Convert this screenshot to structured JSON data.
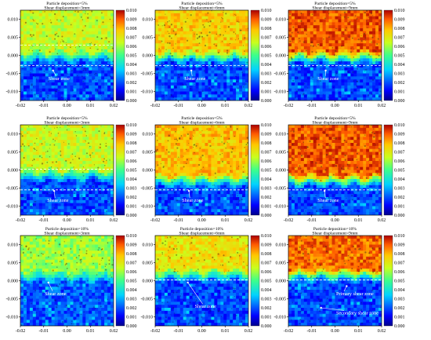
{
  "chart_data": [
    {
      "type": "heatmap",
      "title": "Particle deposition=5%",
      "subtitle": "Shear displacement=3mm",
      "xticks": [
        "-0.02",
        "-0.01",
        "0.00",
        "0.01",
        "0.02"
      ],
      "yticks": [
        "0.010",
        "0.005",
        "0.000",
        "-0.005",
        "-0.010"
      ],
      "colorbar_ticks": [
        "0.010",
        "0.009",
        "0.008",
        "0.007",
        "0.006",
        "0.005",
        "0.004",
        "0.003",
        "0.002",
        "0.001",
        "0.000"
      ],
      "xlim": [
        -0.02,
        0.02
      ],
      "ylim": [
        -0.0125,
        0.0125
      ],
      "clim": [
        0,
        0.01
      ],
      "band_level": 0.0065,
      "base_level": 0.0018,
      "boundary_y": -0.0005,
      "dashed_lines_y": [
        0.0028,
        -0.0028
      ],
      "annotations": [
        {
          "text": "Shear zone",
          "x": -0.008,
          "y": -0.0068,
          "arrow_to": [
            -0.006,
            -0.0042
          ]
        }
      ]
    },
    {
      "type": "heatmap",
      "title": "Particle deposition=5%",
      "subtitle": "Shear displacement=6mm",
      "xticks": [
        "-0.02",
        "-0.01",
        "0.00",
        "0.01",
        "0.02"
      ],
      "yticks": [
        "0.010",
        "0.005",
        "0.000",
        "-0.005",
        "-0.010"
      ],
      "colorbar_ticks": [
        "0.010",
        "0.009",
        "0.008",
        "0.007",
        "0.006",
        "0.005",
        "0.004",
        "0.003",
        "0.002",
        "0.001",
        "0.000"
      ],
      "xlim": [
        -0.02,
        0.02
      ],
      "ylim": [
        -0.0125,
        0.0125
      ],
      "clim": [
        0,
        0.01
      ],
      "band_level": 0.0076,
      "base_level": 0.0018,
      "boundary_y": -0.0005,
      "dashed_lines_y": [
        -0.0028
      ],
      "annotations": [
        {
          "text": "Shear zone",
          "x": -0.0075,
          "y": -0.0068,
          "arrow_to": [
            -0.0045,
            -0.0042
          ]
        }
      ]
    },
    {
      "type": "heatmap",
      "title": "Particle deposition=5%",
      "subtitle": "Shear displacement=9mm",
      "xticks": [
        "-0.02",
        "-0.01",
        "0.00",
        "0.01",
        "0.02"
      ],
      "yticks": [
        "0.010",
        "0.005",
        "0.000",
        "-0.005",
        "-0.010"
      ],
      "colorbar_ticks": [
        "0.010",
        "0.009",
        "0.008",
        "0.007",
        "0.006",
        "0.005",
        "0.004",
        "0.003",
        "0.002",
        "0.001",
        "0.000"
      ],
      "xlim": [
        -0.02,
        0.02
      ],
      "ylim": [
        -0.0125,
        0.0125
      ],
      "clim": [
        0,
        0.01
      ],
      "band_level": 0.009,
      "base_level": 0.0018,
      "boundary_y": -0.0005,
      "dashed_lines_y": [
        -0.0028
      ],
      "annotations": [
        {
          "text": "Shear zone",
          "x": -0.0075,
          "y": -0.0068,
          "arrow_to": [
            -0.004,
            -0.0042
          ]
        }
      ]
    },
    {
      "type": "heatmap",
      "title": "Particle deposition=5%",
      "subtitle": "Shear displacement=3mm",
      "xticks": [
        "-0.02",
        "-0.01",
        "0.00",
        "0.01",
        "0.02"
      ],
      "yticks": [
        "0.010",
        "0.005",
        "0.000",
        "-0.005",
        "-0.010"
      ],
      "colorbar_ticks": [
        "0.010",
        "0.009",
        "0.008",
        "0.007",
        "0.006",
        "0.005",
        "0.004",
        "0.003",
        "0.002",
        "0.001",
        "0.000"
      ],
      "xlim": [
        -0.02,
        0.02
      ],
      "ylim": [
        -0.0125,
        0.0125
      ],
      "clim": [
        0,
        0.01
      ],
      "band_level": 0.0066,
      "base_level": 0.0018,
      "boundary_y": -0.0015,
      "dashed_lines_y": [
        0.0002,
        -0.0055
      ],
      "annotations": [
        {
          "text": "Shear zone",
          "x": -0.0085,
          "y": -0.0088,
          "arrow_to": [
            -0.0055,
            -0.0058
          ]
        }
      ]
    },
    {
      "type": "heatmap",
      "title": "Particle deposition=5%",
      "subtitle": "Shear displacement=6mm",
      "xticks": [
        "-0.02",
        "-0.01",
        "0.00",
        "0.01",
        "0.02"
      ],
      "yticks": [
        "0.010",
        "0.005",
        "0.000",
        "-0.005",
        "-0.010"
      ],
      "colorbar_ticks": [
        "0.010",
        "0.009",
        "0.008",
        "0.007",
        "0.006",
        "0.005",
        "0.004",
        "0.003",
        "0.002",
        "0.001",
        "0.000"
      ],
      "xlim": [
        -0.02,
        0.02
      ],
      "ylim": [
        -0.0125,
        0.0125
      ],
      "clim": [
        0,
        0.01
      ],
      "band_level": 0.0078,
      "base_level": 0.0018,
      "boundary_y": -0.003,
      "dashed_lines_y": [
        -0.0055
      ],
      "annotations": [
        {
          "text": "Shear zone",
          "x": -0.0085,
          "y": -0.0088,
          "arrow_to": [
            -0.0055,
            -0.0058
          ]
        }
      ]
    },
    {
      "type": "heatmap",
      "title": "Particle deposition=5%",
      "subtitle": "Shear displacement=9mm",
      "xticks": [
        "-0.02",
        "-0.01",
        "0.00",
        "0.01",
        "0.02"
      ],
      "yticks": [
        "0.010",
        "0.005",
        "0.000",
        "-0.005",
        "-0.010"
      ],
      "colorbar_ticks": [
        "0.010",
        "0.009",
        "0.008",
        "0.007",
        "0.006",
        "0.005",
        "0.004",
        "0.003",
        "0.002",
        "0.001",
        "0.000"
      ],
      "xlim": [
        -0.02,
        0.02
      ],
      "ylim": [
        -0.0125,
        0.0125
      ],
      "clim": [
        0,
        0.01
      ],
      "band_level": 0.009,
      "base_level": 0.0018,
      "boundary_y": -0.003,
      "dashed_lines_y": [
        -0.0055
      ],
      "annotations": [
        {
          "text": "Shear zone",
          "x": -0.0075,
          "y": -0.0088,
          "arrow_to": [
            -0.0045,
            -0.0058
          ]
        }
      ]
    },
    {
      "type": "heatmap",
      "title": "Particle deposition=10%",
      "subtitle": "Shear displacement=3mm",
      "xticks": [
        "-0.02",
        "-0.01",
        "0.00",
        "0.01",
        "0.02"
      ],
      "yticks": [
        "0.010",
        "0.005",
        "0.000",
        "-0.005",
        "-0.010"
      ],
      "colorbar_ticks": [
        "0.010",
        "0.009",
        "0.008",
        "0.007",
        "0.006",
        "0.005",
        "0.004",
        "0.003",
        "0.002",
        "0.001",
        "0.000"
      ],
      "xlim": [
        -0.02,
        0.02
      ],
      "ylim": [
        -0.0125,
        0.0125
      ],
      "clim": [
        0,
        0.01
      ],
      "band_level": 0.006,
      "base_level": 0.002,
      "boundary_y": 0.001,
      "dashed_lines_y": [],
      "annotations": [
        {
          "text": "Shear zone",
          "x": -0.0095,
          "y": -0.004,
          "arrow_to": [
            -0.008,
            -0.0005
          ]
        }
      ]
    },
    {
      "type": "heatmap",
      "title": "Particle deposition=10%",
      "subtitle": "Shear displacement=6mm",
      "xticks": [
        "-0.02",
        "-0.01",
        "0.00",
        "0.01",
        "0.02"
      ],
      "yticks": [
        "0.010",
        "0.005",
        "0.000",
        "-0.005",
        "-0.010"
      ],
      "colorbar_ticks": [
        "0.010",
        "0.009",
        "0.008",
        "0.007",
        "0.006",
        "0.005",
        "0.004",
        "0.003",
        "0.002",
        "0.001",
        "0.000"
      ],
      "xlim": [
        -0.02,
        0.02
      ],
      "ylim": [
        -0.0125,
        0.0125
      ],
      "clim": [
        0,
        0.01
      ],
      "band_level": 0.0072,
      "base_level": 0.0018,
      "boundary_y": 0.0015,
      "dashed_lines_y": [
        0.0002
      ],
      "annotations": [
        {
          "text": "Shear zone",
          "x": -0.003,
          "y": -0.0075,
          "arrow_to": [
            -0.006,
            -0.0005
          ]
        }
      ]
    },
    {
      "type": "heatmap",
      "title": "Particle deposition=10%",
      "subtitle": "Shear displacement=9mm",
      "xticks": [
        "-0.02",
        "-0.01",
        "0.00",
        "0.01",
        "0.02"
      ],
      "yticks": [
        "0.010",
        "0.005",
        "0.000",
        "-0.005",
        "-0.010"
      ],
      "colorbar_ticks": [
        "0.010",
        "0.009",
        "0.008",
        "0.007",
        "0.006",
        "0.005",
        "0.004",
        "0.003",
        "0.002",
        "0.001",
        "0.000"
      ],
      "xlim": [
        -0.02,
        0.02
      ],
      "ylim": [
        -0.0125,
        0.0125
      ],
      "clim": [
        0,
        0.01
      ],
      "band_level": 0.0088,
      "base_level": 0.0018,
      "boundary_y": 0.0015,
      "dashed_lines_y": [
        0.0002
      ],
      "annotations": [
        {
          "text": "Primary shear zone",
          "x": 0.0005,
          "y": -0.004,
          "arrow_to": [
            0.005,
            -0.0015
          ]
        },
        {
          "text": "Secondary shear zone",
          "x": 0.0005,
          "y": -0.0093,
          "arrow_to": [
            -0.006,
            -0.0075
          ]
        }
      ]
    }
  ]
}
